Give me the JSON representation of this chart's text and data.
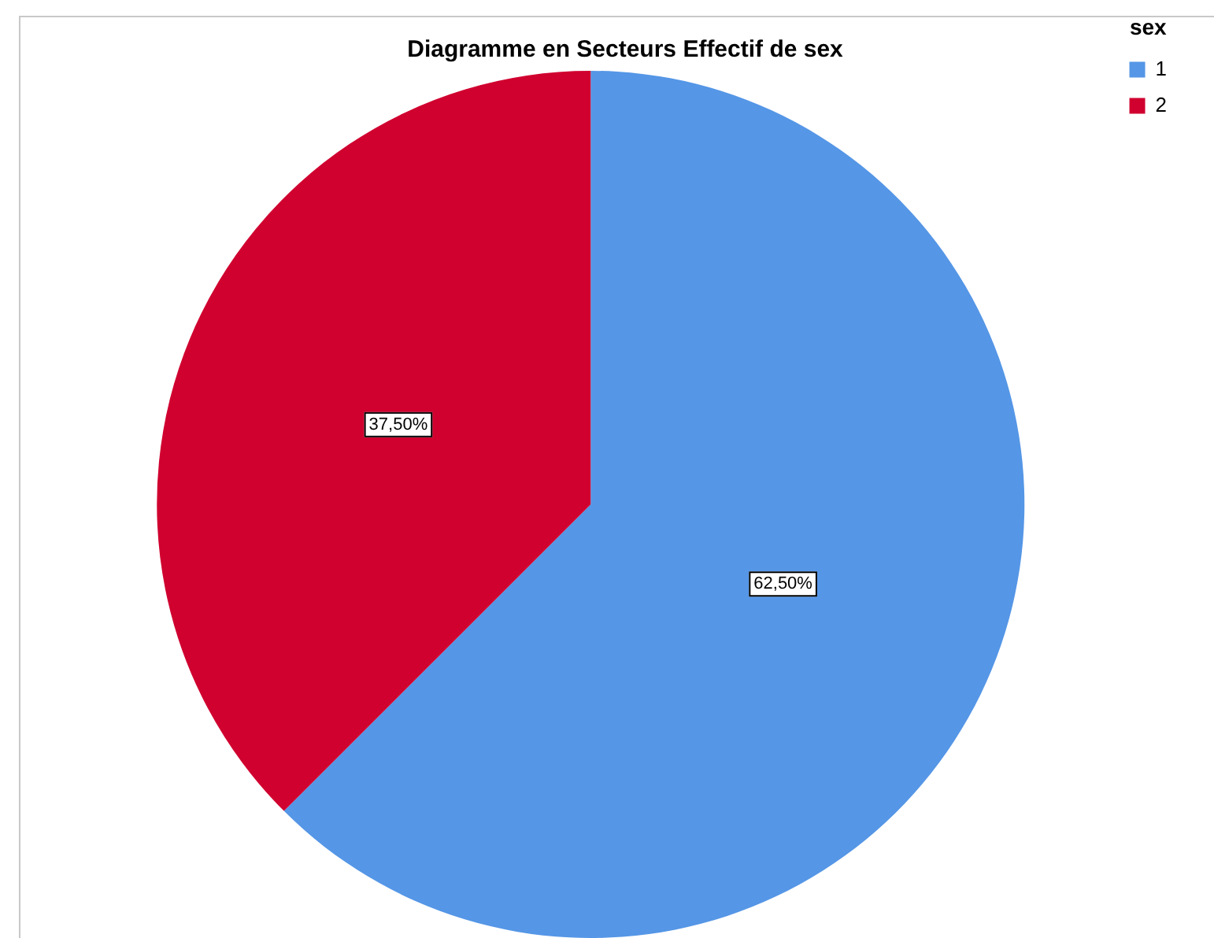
{
  "chart_data": {
    "type": "pie",
    "title": "Diagramme en Secteurs Effectif de sex",
    "legend_title": "sex",
    "legend": "top right",
    "categories": [
      "1",
      "2"
    ],
    "values": [
      62.5,
      37.5
    ],
    "colors": [
      "#5596e6",
      "#d0002f"
    ],
    "value_labels": [
      "62,50%",
      "37,50%"
    ]
  }
}
